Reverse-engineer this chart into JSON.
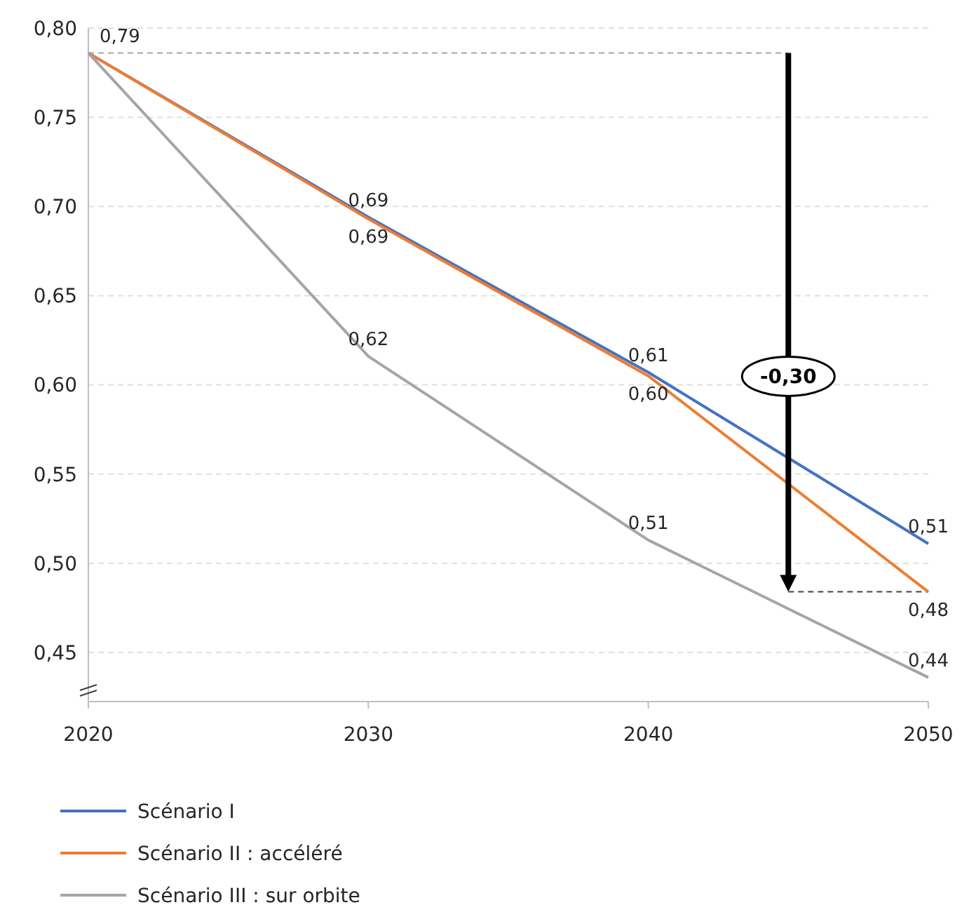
{
  "chart_data": {
    "type": "line",
    "x": [
      2020,
      2030,
      2040,
      2050
    ],
    "series": [
      {
        "name": "Scénario I",
        "color": "#4472c4",
        "values": [
          0.786,
          0.694,
          0.607,
          0.511
        ],
        "value_labels": [
          "0,79",
          "0,69",
          "0,61",
          "0,51"
        ]
      },
      {
        "name": "Scénario II : accéléré",
        "color": "#ed7d31",
        "values": [
          0.786,
          0.693,
          0.605,
          0.484
        ],
        "value_labels": [
          null,
          "0,69",
          "0,60",
          "0,48"
        ]
      },
      {
        "name": "Scénario III : sur orbite",
        "color": "#a5a5a5",
        "values": [
          0.786,
          0.616,
          0.513,
          0.436
        ],
        "value_labels": [
          null,
          "0,62",
          "0,51",
          "0,44"
        ]
      }
    ],
    "xlim": [
      2020,
      2050
    ],
    "xticks": [
      2020,
      2030,
      2040,
      2050
    ],
    "ylim": [
      0.4225,
      0.8
    ],
    "yticks": [
      {
        "value": 0.45,
        "label": "0,45"
      },
      {
        "value": 0.5,
        "label": "0,50"
      },
      {
        "value": 0.55,
        "label": "0,55"
      },
      {
        "value": 0.6,
        "label": "0,60"
      },
      {
        "value": 0.65,
        "label": "0,65"
      },
      {
        "value": 0.7,
        "label": "0,70"
      },
      {
        "value": 0.75,
        "label": "0,75"
      },
      {
        "value": 0.8,
        "label": "0,80"
      }
    ],
    "grid": "y",
    "legend": "bottom",
    "marker": "none",
    "line_style": "solid",
    "ref_lines": [
      {
        "axis": "y",
        "value": 0.786,
        "color": "#a6a6a6",
        "line_style": "dashed"
      },
      {
        "axis": "y",
        "value": 0.484,
        "color": "#404040",
        "line_style": "dashed"
      }
    ],
    "annotations": [
      "-0,30"
    ]
  }
}
